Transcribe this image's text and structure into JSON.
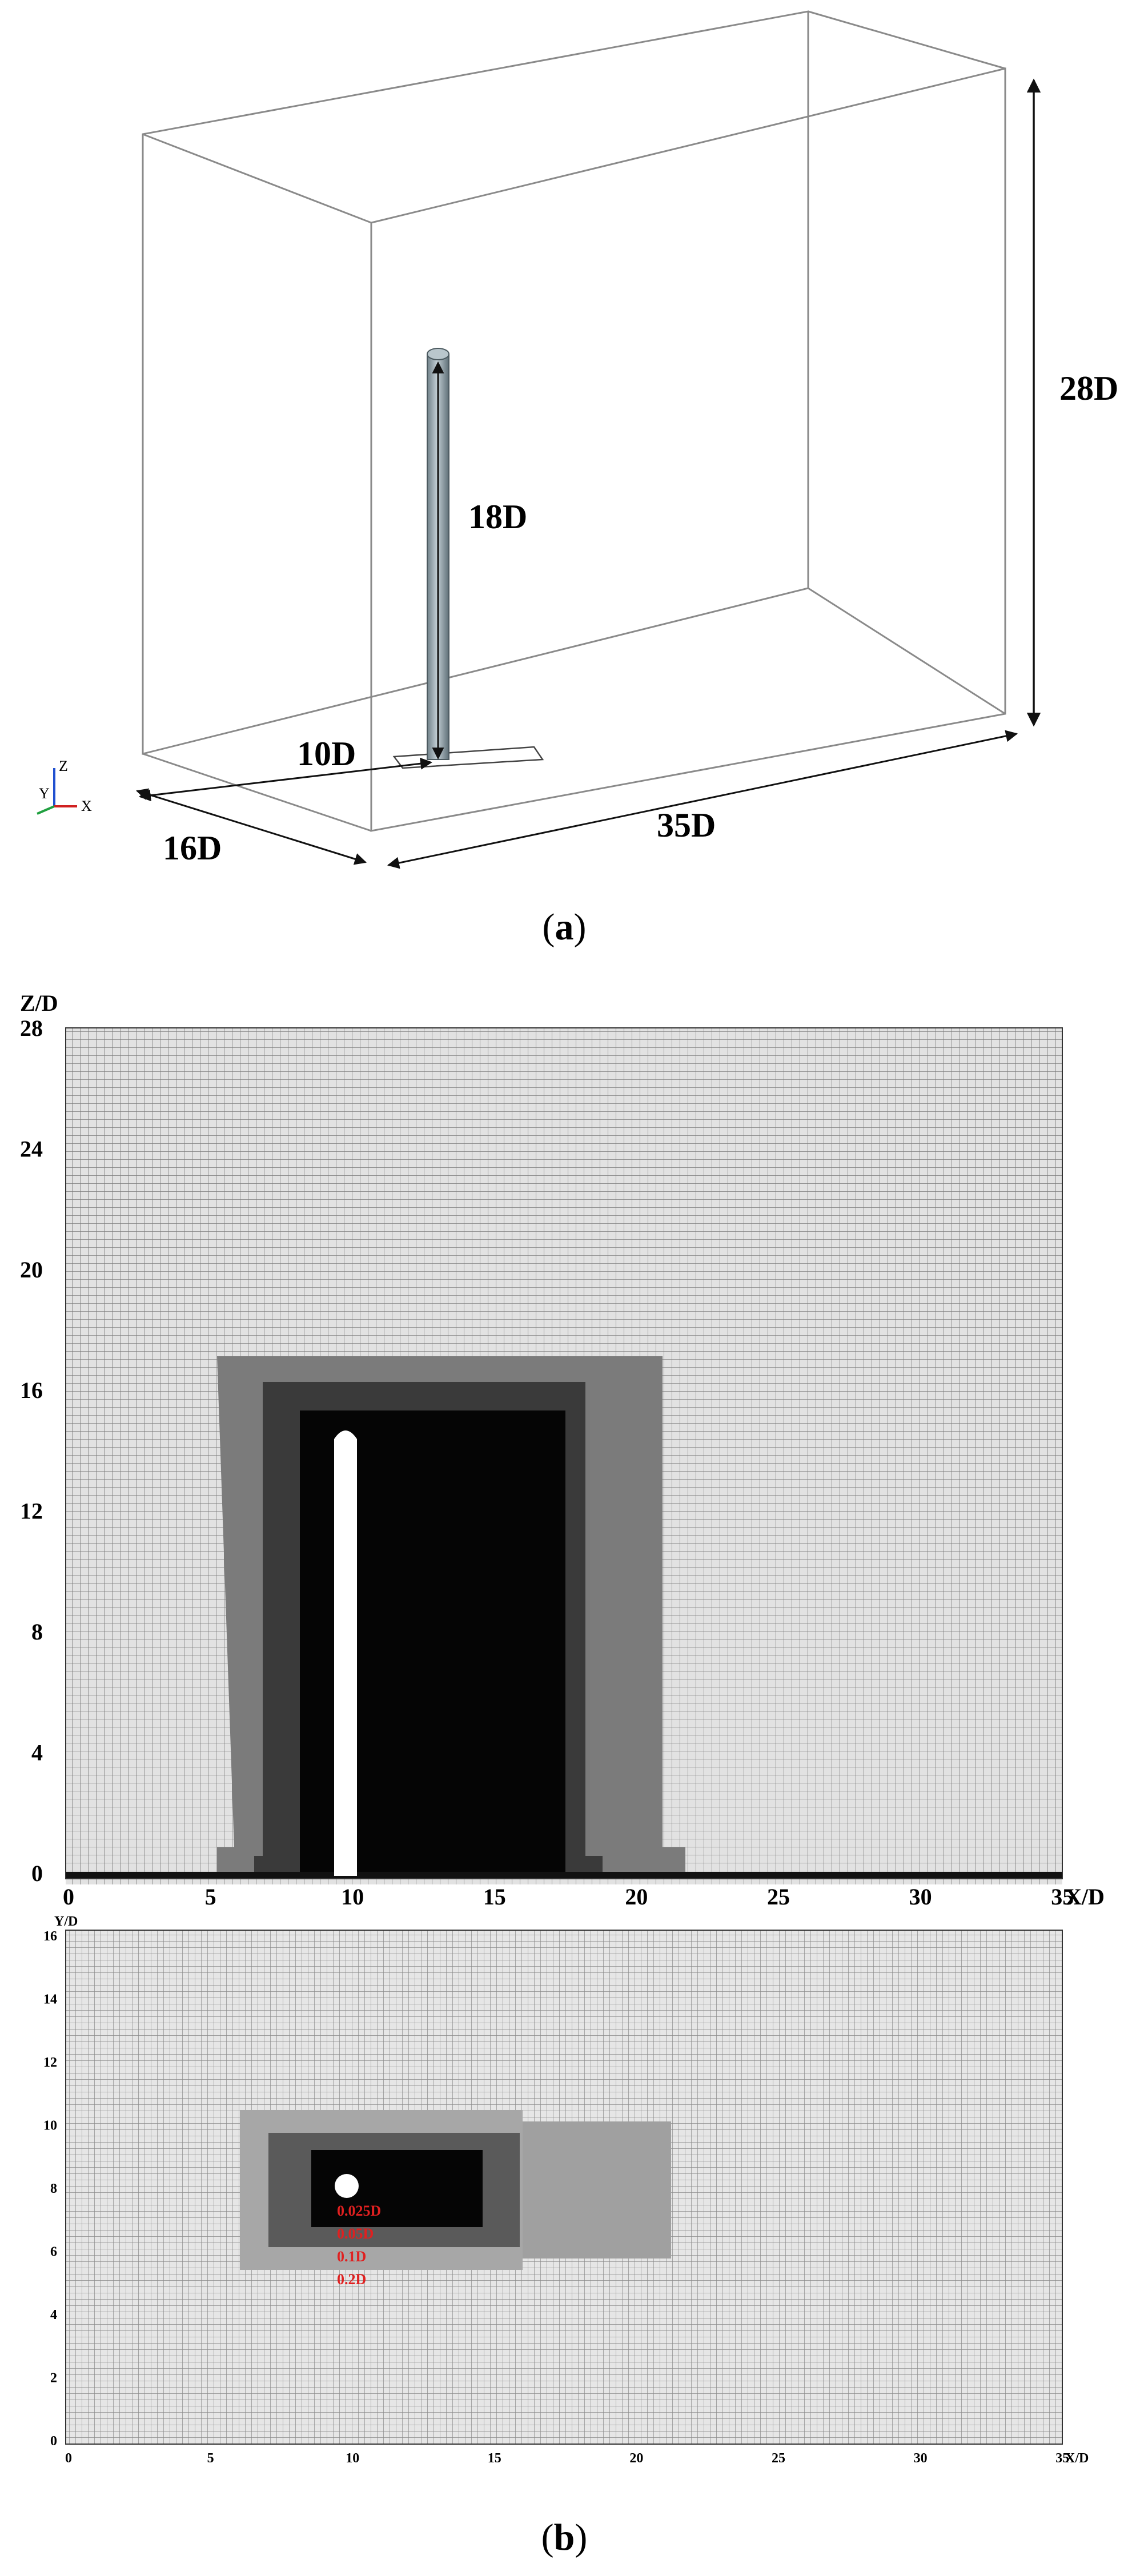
{
  "panel_a": {
    "caption_prefix": "(",
    "caption_letter": "a",
    "caption_suffix": ")",
    "dimensions": {
      "height": "28D",
      "cylinder_height": "18D",
      "cylinder_offset": "10D",
      "width": "16D",
      "length": "35D"
    },
    "triad": {
      "z": "Z",
      "y": "Y",
      "x": "X"
    }
  },
  "panel_b": {
    "caption_prefix": "(",
    "caption_letter": "b",
    "caption_suffix": ")",
    "side_view": {
      "y_axis_title": "Z/D",
      "x_axis_title": "X/D",
      "y_ticks": [
        "28",
        "24",
        "20",
        "16",
        "12",
        "8",
        "4",
        "0"
      ],
      "x_ticks": [
        "0",
        "5",
        "10",
        "15",
        "20",
        "25",
        "30",
        "35"
      ]
    },
    "top_view": {
      "y_axis_title": "Y/D",
      "x_axis_title": "X/D",
      "y_ticks": [
        "16",
        "14",
        "12",
        "10",
        "8",
        "6",
        "4",
        "2",
        "0"
      ],
      "x_ticks": [
        "0",
        "5",
        "10",
        "15",
        "20",
        "25",
        "30",
        "35"
      ],
      "refinement_labels": [
        "0.025D",
        "0.05D",
        "0.1D",
        "0.2D"
      ]
    }
  },
  "colors": {
    "refine_red": "#e02020",
    "mesh_fine": "#000000",
    "mesh_medium": "#3a3a3a",
    "mesh_coarse_dark": "#7a7a7a",
    "mesh_base": "#b8b8b8",
    "cylinder": "#93a4ad"
  }
}
